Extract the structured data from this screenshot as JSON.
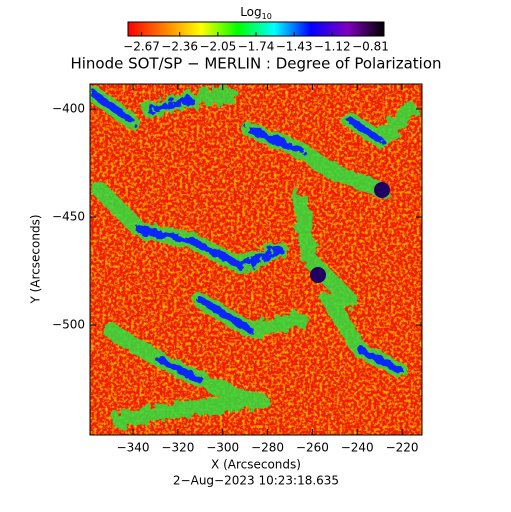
{
  "chart_data": {
    "type": "image",
    "title": "Hinode SOT/SP − MERLIN : Degree of Polarization",
    "x_label": "X (Arcseconds)",
    "y_label": "Y (Arcseconds)",
    "footer": "2−Aug−2023 10:23:18.635",
    "colorbar": {
      "label": "Log",
      "label_subscript": "10",
      "lim": [
        -2.78,
        -0.7
      ],
      "ticks": [
        {
          "value": -2.67,
          "label": "−2.67"
        },
        {
          "value": -2.36,
          "label": "−2.36"
        },
        {
          "value": -2.05,
          "label": "−2.05"
        },
        {
          "value": -1.74,
          "label": "−1.74"
        },
        {
          "value": -1.43,
          "label": "−1.43"
        },
        {
          "value": -1.12,
          "label": "−1.12"
        },
        {
          "value": -0.81,
          "label": "−0.81"
        }
      ],
      "colors": [
        "#ff0000",
        "#ff8000",
        "#ffff00",
        "#00ff00",
        "#00ffff",
        "#0000ff",
        "#8000c0",
        "#000000"
      ]
    },
    "xlim": [
      -359.2,
      -211.1
    ],
    "ylim": [
      -550.9,
      -388.4
    ],
    "xticks": [
      {
        "value": -340,
        "label": "−340"
      },
      {
        "value": -320,
        "label": "−320"
      },
      {
        "value": -300,
        "label": "−300"
      },
      {
        "value": -280,
        "label": "−280"
      },
      {
        "value": -260,
        "label": "−260"
      },
      {
        "value": -240,
        "label": "−240"
      },
      {
        "value": -220,
        "label": "−220"
      }
    ],
    "yticks": [
      {
        "value": -400,
        "label": "−400"
      },
      {
        "value": -450,
        "label": "−450"
      },
      {
        "value": -500,
        "label": "−500"
      }
    ]
  }
}
